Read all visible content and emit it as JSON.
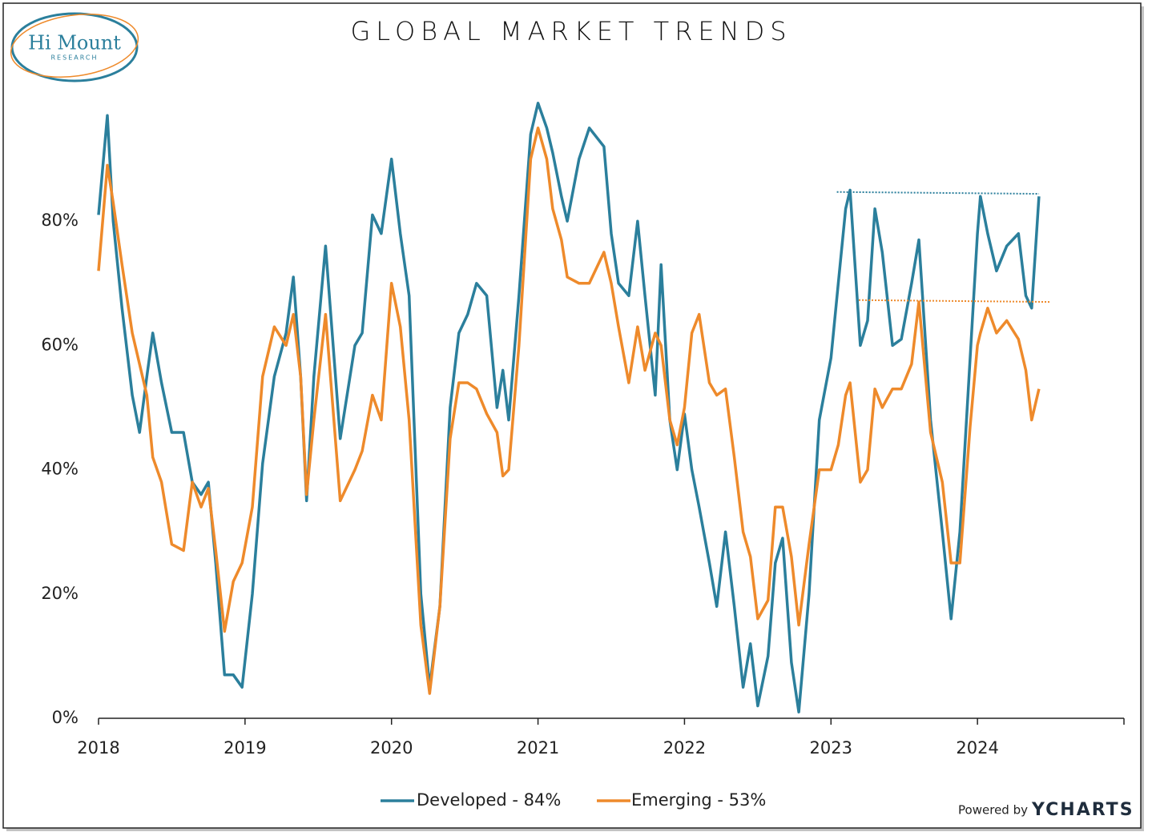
{
  "logo": {
    "name": "Hi Mount",
    "sub": "RESEARCH"
  },
  "credit": {
    "prefix": "Powered by",
    "brand": "YCHARTS"
  },
  "chart_data": {
    "type": "line",
    "title": "GLOBAL MARKET TRENDS",
    "x": [
      2018.0,
      2018.06,
      2018.1,
      2018.16,
      2018.23,
      2018.28,
      2018.33,
      2018.37,
      2018.43,
      2018.5,
      2018.58,
      2018.64,
      2018.7,
      2018.75,
      2018.8,
      2018.86,
      2018.92,
      2018.98,
      2019.05,
      2019.12,
      2019.2,
      2019.28,
      2019.33,
      2019.38,
      2019.42,
      2019.47,
      2019.55,
      2019.65,
      2019.75,
      2019.8,
      2019.87,
      2019.93,
      2020.0,
      2020.06,
      2020.12,
      2020.2,
      2020.26,
      2020.33,
      2020.4,
      2020.46,
      2020.52,
      2020.58,
      2020.65,
      2020.72,
      2020.76,
      2020.8,
      2020.87,
      2020.95,
      2021.0,
      2021.06,
      2021.1,
      2021.16,
      2021.2,
      2021.28,
      2021.35,
      2021.45,
      2021.5,
      2021.55,
      2021.62,
      2021.68,
      2021.73,
      2021.8,
      2021.84,
      2021.9,
      2021.95,
      2022.0,
      2022.05,
      2022.1,
      2022.17,
      2022.22,
      2022.28,
      2022.34,
      2022.4,
      2022.45,
      2022.5,
      2022.57,
      2022.62,
      2022.67,
      2022.73,
      2022.78,
      2022.85,
      2022.92,
      2023.0,
      2023.05,
      2023.1,
      2023.13,
      2023.2,
      2023.25,
      2023.3,
      2023.35,
      2023.42,
      2023.48,
      2023.55,
      2023.6,
      2023.68,
      2023.76,
      2023.82,
      2023.88,
      2023.95,
      2024.0,
      2024.02,
      2024.07,
      2024.13,
      2024.2,
      2024.28,
      2024.33,
      2024.37,
      2024.42
    ],
    "series": [
      {
        "name": "Developed - 84%",
        "color": "#2b7f9c",
        "values": [
          81,
          97,
          80,
          66,
          52,
          46,
          55,
          62,
          54,
          46,
          46,
          38,
          36,
          38,
          25,
          7,
          7,
          5,
          20,
          41,
          55,
          62,
          71,
          55,
          35,
          55,
          76,
          45,
          60,
          62,
          81,
          78,
          90,
          78,
          68,
          20,
          5,
          18,
          50,
          62,
          65,
          70,
          68,
          50,
          56,
          48,
          68,
          94,
          99,
          95,
          91,
          84,
          80,
          90,
          95,
          92,
          78,
          70,
          68,
          80,
          68,
          52,
          73,
          48,
          40,
          49,
          40,
          34,
          25,
          18,
          30,
          18,
          5,
          12,
          2,
          10,
          25,
          29,
          9,
          1,
          20,
          48,
          58,
          70,
          82,
          85,
          60,
          64,
          82,
          75,
          60,
          61,
          70,
          77,
          48,
          30,
          16,
          30,
          58,
          78,
          84,
          78,
          72,
          76,
          78,
          68,
          66,
          84
        ]
      },
      {
        "name": "Emerging - 53%",
        "color": "#ee8a2b",
        "values": [
          72,
          89,
          83,
          73,
          62,
          57,
          52,
          42,
          38,
          28,
          27,
          38,
          34,
          37,
          27,
          14,
          22,
          25,
          34,
          55,
          63,
          60,
          65,
          55,
          36,
          48,
          65,
          35,
          40,
          43,
          52,
          48,
          70,
          63,
          48,
          15,
          4,
          18,
          45,
          54,
          54,
          53,
          49,
          46,
          39,
          40,
          60,
          90,
          95,
          90,
          82,
          77,
          71,
          70,
          70,
          75,
          70,
          63,
          54,
          63,
          56,
          62,
          60,
          48,
          44,
          50,
          62,
          65,
          54,
          52,
          53,
          42,
          30,
          26,
          16,
          19,
          34,
          34,
          26,
          15,
          28,
          40,
          40,
          44,
          52,
          54,
          38,
          40,
          53,
          50,
          53,
          53,
          57,
          67,
          46,
          38,
          25,
          25,
          47,
          60,
          62,
          66,
          62,
          64,
          61,
          56,
          48,
          53
        ]
      }
    ],
    "reference_lines": [
      {
        "color": "#2b7f9c",
        "x": [
          2023.04,
          2024.42
        ],
        "y": [
          84.7,
          84.4
        ]
      },
      {
        "color": "#ee8a2b",
        "x": [
          2023.19,
          2024.5
        ],
        "y": [
          67.3,
          67.0
        ]
      }
    ],
    "xlim": [
      2018,
      2025
    ],
    "xticks": [
      2018,
      2019,
      2020,
      2021,
      2022,
      2023,
      2024
    ],
    "ylim": [
      0,
      100
    ],
    "yticks": [
      {
        "value": 0,
        "label": "0%"
      },
      {
        "value": 20,
        "label": "20%"
      },
      {
        "value": 40,
        "label": "40%"
      },
      {
        "value": 60,
        "label": "60%"
      },
      {
        "value": 80,
        "label": "80%"
      }
    ],
    "legend": "bottom"
  }
}
